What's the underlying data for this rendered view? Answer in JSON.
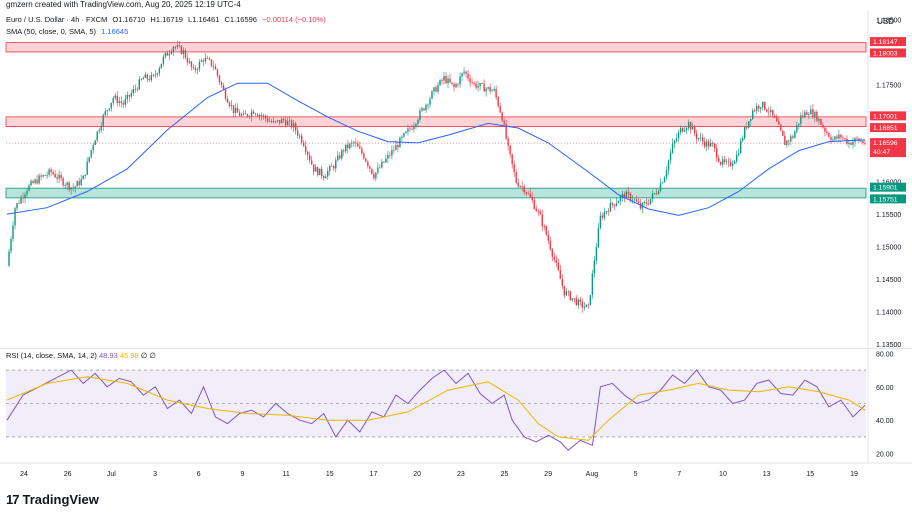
{
  "header": {
    "creator_line": "gmzern created with TradingView.com, Aug 20, 2025 12:19 UTC-4"
  },
  "legend": {
    "symbol": "Euro / U.S. Dollar · 4h · FXCM",
    "open": "O1.16710",
    "high": "H1.16719",
    "low": "L1.16461",
    "close": "C1.16596",
    "change": "−0.00114 (−0.10%)",
    "sma_label": "SMA (50, close, 0, SMA, 5)",
    "sma_value": "1.16645",
    "rsi_label": "RSI (14, close, SMA, 14, 2)",
    "rsi_value": "48.93",
    "rsi_sma_value": "45.98",
    "rsi_extra": "∅ ∅"
  },
  "currency": "USD",
  "brand": "TradingView",
  "colors": {
    "up": "#089981",
    "down": "#f23645",
    "sma": "#2962ff",
    "rsi": "#7e57c2",
    "rsi_ma": "#f0b400",
    "resistance": "#f23645",
    "support": "#089981"
  },
  "chart_data": [
    {
      "type": "candlestick",
      "title": "Euro / U.S. Dollar · 4h · FXCM",
      "yaxis_ticks": [
        "1.18500",
        "1.18000",
        "1.17500",
        "1.17000",
        "1.16500",
        "1.16000",
        "1.15500",
        "1.15000",
        "1.14500",
        "1.14000",
        "1.13500"
      ],
      "ylim": [
        1.1345,
        1.1865
      ],
      "xaxis_ticks": [
        "24",
        "26",
        "Jul",
        "3",
        "6",
        "9",
        "11",
        "15",
        "17",
        "20",
        "23",
        "25",
        "29",
        "Aug",
        "5",
        "7",
        "10",
        "13",
        "15",
        "19"
      ],
      "zones": [
        {
          "name": "resistance",
          "top": 1.18147,
          "bottom": 1.18003,
          "labels": [
            "1.18147",
            "1.18003"
          ]
        },
        {
          "name": "resistance",
          "top": 1.17001,
          "bottom": 1.16851,
          "labels": [
            "1.17001",
            "1.16851"
          ]
        },
        {
          "name": "support",
          "top": 1.15901,
          "bottom": 1.15751,
          "labels": [
            "1.15901",
            "1.15751"
          ]
        }
      ],
      "last_price": {
        "value": 1.16596,
        "label": "1.16596",
        "countdown": "40:47"
      },
      "close_path": [
        [
          0,
          1.147
        ],
        [
          4,
          1.156
        ],
        [
          10,
          1.159
        ],
        [
          16,
          1.1605
        ],
        [
          22,
          1.1615
        ],
        [
          28,
          1.16
        ],
        [
          33,
          1.159
        ],
        [
          38,
          1.1605
        ],
        [
          43,
          1.166
        ],
        [
          48,
          1.17
        ],
        [
          53,
          1.173
        ],
        [
          58,
          1.172
        ],
        [
          63,
          1.174
        ],
        [
          68,
          1.176
        ],
        [
          73,
          1.176
        ],
        [
          78,
          1.179
        ],
        [
          83,
          1.181
        ],
        [
          88,
          1.18
        ],
        [
          93,
          1.177
        ],
        [
          98,
          1.179
        ],
        [
          103,
          1.178
        ],
        [
          108,
          1.174
        ],
        [
          113,
          1.171
        ],
        [
          118,
          1.17
        ],
        [
          123,
          1.171
        ],
        [
          128,
          1.17
        ],
        [
          133,
          1.169
        ],
        [
          138,
          1.1695
        ],
        [
          143,
          1.1685
        ],
        [
          148,
          1.166
        ],
        [
          153,
          1.162
        ],
        [
          158,
          1.161
        ],
        [
          163,
          1.1625
        ],
        [
          168,
          1.165
        ],
        [
          173,
          1.166
        ],
        [
          178,
          1.164
        ],
        [
          183,
          1.161
        ],
        [
          188,
          1.163
        ],
        [
          193,
          1.165
        ],
        [
          198,
          1.167
        ],
        [
          203,
          1.169
        ],
        [
          208,
          1.1715
        ],
        [
          213,
          1.174
        ],
        [
          218,
          1.176
        ],
        [
          223,
          1.1745
        ],
        [
          228,
          1.177
        ],
        [
          233,
          1.175
        ],
        [
          238,
          1.1745
        ],
        [
          243,
          1.174
        ],
        [
          247,
          1.17
        ],
        [
          250,
          1.165
        ],
        [
          254,
          1.16
        ],
        [
          258,
          1.159
        ],
        [
          262,
          1.157
        ],
        [
          266,
          1.1545
        ],
        [
          270,
          1.151
        ],
        [
          274,
          1.147
        ],
        [
          278,
          1.143
        ],
        [
          282,
          1.142
        ],
        [
          286,
          1.141
        ],
        [
          290,
          1.1405
        ],
        [
          293,
          1.148
        ],
        [
          296,
          1.1545
        ],
        [
          300,
          1.156
        ],
        [
          304,
          1.157
        ],
        [
          308,
          1.158
        ],
        [
          312,
          1.1575
        ],
        [
          316,
          1.156
        ],
        [
          320,
          1.157
        ],
        [
          324,
          1.1585
        ],
        [
          328,
          1.161
        ],
        [
          332,
          1.1655
        ],
        [
          336,
          1.168
        ],
        [
          340,
          1.169
        ],
        [
          344,
          1.167
        ],
        [
          348,
          1.166
        ],
        [
          352,
          1.1655
        ],
        [
          356,
          1.163
        ],
        [
          360,
          1.1625
        ],
        [
          364,
          1.164
        ],
        [
          368,
          1.168
        ],
        [
          372,
          1.171
        ],
        [
          376,
          1.172
        ],
        [
          380,
          1.171
        ],
        [
          384,
          1.169
        ],
        [
          388,
          1.166
        ],
        [
          392,
          1.167
        ],
        [
          396,
          1.17
        ],
        [
          400,
          1.171
        ],
        [
          404,
          1.17
        ],
        [
          408,
          1.168
        ],
        [
          412,
          1.1665
        ],
        [
          416,
          1.167
        ],
        [
          420,
          1.166
        ],
        [
          424,
          1.1665
        ],
        [
          428,
          1.166
        ]
      ],
      "sma_path": [
        [
          0,
          1.155
        ],
        [
          20,
          1.156
        ],
        [
          40,
          1.1585
        ],
        [
          60,
          1.162
        ],
        [
          80,
          1.168
        ],
        [
          100,
          1.173
        ],
        [
          115,
          1.1752
        ],
        [
          130,
          1.1752
        ],
        [
          145,
          1.1725
        ],
        [
          160,
          1.17
        ],
        [
          175,
          1.1678
        ],
        [
          190,
          1.1662
        ],
        [
          205,
          1.166
        ],
        [
          220,
          1.1672
        ],
        [
          240,
          1.169
        ],
        [
          255,
          1.1683
        ],
        [
          270,
          1.166
        ],
        [
          290,
          1.1615
        ],
        [
          305,
          1.158
        ],
        [
          320,
          1.1558
        ],
        [
          335,
          1.1548
        ],
        [
          350,
          1.156
        ],
        [
          365,
          1.1585
        ],
        [
          380,
          1.162
        ],
        [
          395,
          1.1648
        ],
        [
          410,
          1.1662
        ],
        [
          428,
          1.16645
        ]
      ]
    },
    {
      "type": "line",
      "title": "RSI (14, close, SMA, 14, 2)",
      "ylim": [
        15,
        82
      ],
      "yaxis_ticks": [
        "80.00",
        "60.00",
        "40.00",
        "20.00"
      ],
      "band": [
        30,
        70
      ],
      "middle": 50,
      "rsi": [
        [
          0,
          40
        ],
        [
          8,
          55
        ],
        [
          16,
          60
        ],
        [
          24,
          65
        ],
        [
          32,
          70
        ],
        [
          38,
          62
        ],
        [
          44,
          68
        ],
        [
          50,
          60
        ],
        [
          56,
          65
        ],
        [
          62,
          63
        ],
        [
          68,
          55
        ],
        [
          74,
          60
        ],
        [
          80,
          47
        ],
        [
          86,
          52
        ],
        [
          92,
          44
        ],
        [
          98,
          60
        ],
        [
          104,
          42
        ],
        [
          110,
          38
        ],
        [
          116,
          44
        ],
        [
          122,
          46
        ],
        [
          128,
          42
        ],
        [
          134,
          50
        ],
        [
          140,
          44
        ],
        [
          146,
          40
        ],
        [
          152,
          38
        ],
        [
          158,
          44
        ],
        [
          164,
          30
        ],
        [
          170,
          40
        ],
        [
          176,
          33
        ],
        [
          182,
          45
        ],
        [
          188,
          42
        ],
        [
          194,
          55
        ],
        [
          200,
          50
        ],
        [
          206,
          58
        ],
        [
          212,
          65
        ],
        [
          218,
          70
        ],
        [
          224,
          62
        ],
        [
          230,
          68
        ],
        [
          236,
          56
        ],
        [
          242,
          50
        ],
        [
          248,
          55
        ],
        [
          252,
          40
        ],
        [
          258,
          30
        ],
        [
          264,
          27
        ],
        [
          270,
          31
        ],
        [
          276,
          27
        ],
        [
          280,
          22
        ],
        [
          286,
          28
        ],
        [
          292,
          25
        ],
        [
          296,
          60
        ],
        [
          302,
          62
        ],
        [
          308,
          55
        ],
        [
          314,
          50
        ],
        [
          320,
          52
        ],
        [
          326,
          58
        ],
        [
          332,
          67
        ],
        [
          338,
          62
        ],
        [
          344,
          70
        ],
        [
          350,
          60
        ],
        [
          356,
          58
        ],
        [
          362,
          50
        ],
        [
          368,
          52
        ],
        [
          374,
          62
        ],
        [
          380,
          64
        ],
        [
          386,
          56
        ],
        [
          392,
          55
        ],
        [
          398,
          64
        ],
        [
          404,
          60
        ],
        [
          410,
          48
        ],
        [
          416,
          52
        ],
        [
          422,
          42
        ],
        [
          428,
          48.93
        ]
      ],
      "rsi_sma": [
        [
          0,
          52
        ],
        [
          20,
          62
        ],
        [
          40,
          66
        ],
        [
          60,
          62
        ],
        [
          80,
          52
        ],
        [
          100,
          47
        ],
        [
          120,
          44
        ],
        [
          140,
          43
        ],
        [
          160,
          40
        ],
        [
          180,
          40
        ],
        [
          200,
          45
        ],
        [
          220,
          58
        ],
        [
          240,
          63
        ],
        [
          255,
          52
        ],
        [
          265,
          38
        ],
        [
          275,
          30
        ],
        [
          290,
          28
        ],
        [
          300,
          40
        ],
        [
          315,
          55
        ],
        [
          330,
          58
        ],
        [
          345,
          62
        ],
        [
          360,
          58
        ],
        [
          375,
          57
        ],
        [
          390,
          60
        ],
        [
          405,
          57
        ],
        [
          420,
          52
        ],
        [
          428,
          45.98
        ]
      ]
    }
  ]
}
